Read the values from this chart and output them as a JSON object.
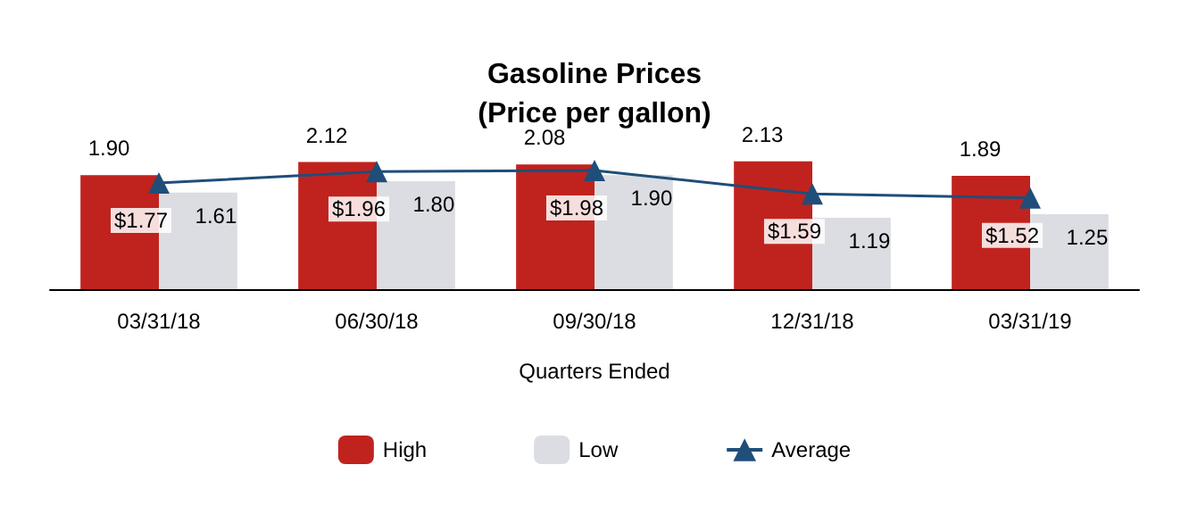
{
  "chart_data": {
    "type": "bar",
    "title": "Gasoline Prices\n(Price per gallon)",
    "xlabel": "Quarters Ended",
    "categories": [
      "03/31/18",
      "06/30/18",
      "09/30/18",
      "12/31/18",
      "03/31/19"
    ],
    "series": [
      {
        "name": "High",
        "color": "#c0231e",
        "values": [
          1.9,
          2.12,
          2.08,
          2.13,
          1.89
        ],
        "value_labels": [
          "1.90",
          "2.12",
          "2.08",
          "2.13",
          "1.89"
        ]
      },
      {
        "name": "Low",
        "color": "#dcdde2",
        "values": [
          1.61,
          1.8,
          1.9,
          1.19,
          1.25
        ],
        "value_labels": [
          "1.61",
          "1.80",
          "1.90",
          "1.19",
          "1.25"
        ]
      },
      {
        "name": "Average",
        "type": "line",
        "color": "#1f4e79",
        "values": [
          1.77,
          1.96,
          1.98,
          1.59,
          1.52
        ],
        "value_labels": [
          "$1.77",
          "$1.96",
          "$1.98",
          "$1.59",
          "$1.52"
        ]
      }
    ],
    "marker": "triangle",
    "legend": "bottom"
  }
}
